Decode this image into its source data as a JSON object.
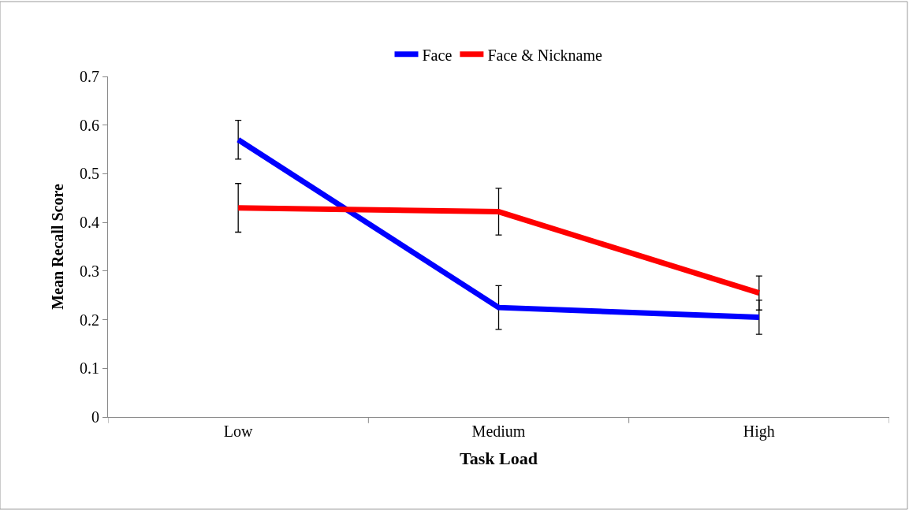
{
  "chart_data": {
    "type": "line",
    "xlabel": "Task Load",
    "ylabel": "Mean Recall Score",
    "categories": [
      "Low",
      "Medium",
      "High"
    ],
    "series": [
      {
        "name": "Face",
        "color": "#0000ff",
        "values": [
          0.57,
          0.225,
          0.205
        ],
        "errors": [
          0.04,
          0.045,
          0.035
        ]
      },
      {
        "name": "Face & Nickname",
        "color": "#ff0000",
        "values": [
          0.43,
          0.422,
          0.255
        ],
        "errors": [
          0.05,
          0.048,
          0.035
        ]
      }
    ],
    "ylim": [
      0,
      0.7
    ],
    "yticks": [
      0,
      0.1,
      0.2,
      0.3,
      0.4,
      0.5,
      0.6,
      0.7
    ],
    "grid": false,
    "legend": "top",
    "marker": "none",
    "line_style": "solid"
  }
}
